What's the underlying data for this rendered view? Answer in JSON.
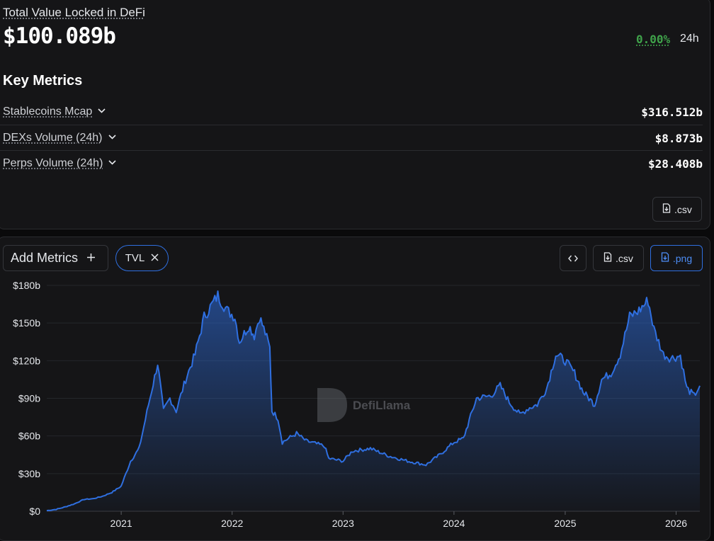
{
  "header": {
    "tvl_label": "Total Value Locked in DeFi",
    "tvl_value": "$100.089b",
    "change_pct": "0.00%",
    "change_period": "24h",
    "change_color": "#3fa24a"
  },
  "key_metrics": {
    "title": "Key Metrics",
    "items": [
      {
        "label": "Stablecoins Mcap",
        "value": "$316.512b"
      },
      {
        "label": "DEXs Volume (24h)",
        "value": "$8.873b"
      },
      {
        "label": "Perps Volume (24h)",
        "value": "$28.408b"
      }
    ],
    "csv_label": ".csv"
  },
  "toolbar": {
    "add_metrics_label": "Add Metrics",
    "tvl_pill_label": "TVL",
    "embed_icon": "code-icon",
    "csv_label": ".csv",
    "png_label": ".png",
    "accent_color": "#2f6fe0"
  },
  "watermark": "DefiLlama",
  "chart_data": {
    "type": "area",
    "series": [
      {
        "name": "TVL",
        "color": "#2f6fe0"
      }
    ],
    "x_ticks": [
      "2021",
      "2022",
      "2023",
      "2024",
      "2025",
      "2026"
    ],
    "y_ticks": [
      "$0",
      "$30b",
      "$60b",
      "$90b",
      "$120b",
      "$150b",
      "$180b"
    ],
    "ylim": [
      0,
      180
    ],
    "y_unit": "billion USD",
    "xlim": [
      "2020-05-01",
      "2026-03-20"
    ],
    "grid": true,
    "points": [
      [
        "2020-05-01",
        0.5
      ],
      [
        "2020-06-01",
        1.5
      ],
      [
        "2020-07-01",
        3.5
      ],
      [
        "2020-08-01",
        6
      ],
      [
        "2020-09-01",
        9.5
      ],
      [
        "2020-10-01",
        10
      ],
      [
        "2020-11-01",
        12
      ],
      [
        "2020-12-01",
        15
      ],
      [
        "2021-01-01",
        20
      ],
      [
        "2021-02-01",
        40
      ],
      [
        "2021-03-01",
        50
      ],
      [
        "2021-04-01",
        85
      ],
      [
        "2021-05-01",
        118
      ],
      [
        "2021-05-20",
        80
      ],
      [
        "2021-06-10",
        90
      ],
      [
        "2021-07-01",
        80
      ],
      [
        "2021-08-01",
        105
      ],
      [
        "2021-09-01",
        125
      ],
      [
        "2021-10-01",
        155
      ],
      [
        "2021-11-15",
        172
      ],
      [
        "2021-12-15",
        160
      ],
      [
        "2022-01-10",
        155
      ],
      [
        "2022-01-25",
        135
      ],
      [
        "2022-02-25",
        148
      ],
      [
        "2022-03-15",
        140
      ],
      [
        "2022-04-01",
        155
      ],
      [
        "2022-04-20",
        142
      ],
      [
        "2022-05-05",
        130
      ],
      [
        "2022-05-12",
        80
      ],
      [
        "2022-06-01",
        74
      ],
      [
        "2022-06-15",
        55
      ],
      [
        "2022-08-01",
        62
      ],
      [
        "2022-09-01",
        56
      ],
      [
        "2022-10-01",
        54
      ],
      [
        "2022-11-01",
        52
      ],
      [
        "2022-11-15",
        42
      ],
      [
        "2023-01-01",
        40
      ],
      [
        "2023-02-01",
        48
      ],
      [
        "2023-04-01",
        50
      ],
      [
        "2023-06-01",
        44
      ],
      [
        "2023-08-01",
        40
      ],
      [
        "2023-10-01",
        37
      ],
      [
        "2023-11-15",
        45
      ],
      [
        "2024-01-01",
        55
      ],
      [
        "2024-02-01",
        58
      ],
      [
        "2024-03-15",
        90
      ],
      [
        "2024-05-01",
        92
      ],
      [
        "2024-06-01",
        100
      ],
      [
        "2024-07-01",
        87
      ],
      [
        "2024-08-05",
        77
      ],
      [
        "2024-09-01",
        82
      ],
      [
        "2024-10-01",
        85
      ],
      [
        "2024-11-01",
        98
      ],
      [
        "2024-12-01",
        125
      ],
      [
        "2025-01-01",
        120
      ],
      [
        "2025-02-01",
        110
      ],
      [
        "2025-03-01",
        95
      ],
      [
        "2025-04-08",
        85
      ],
      [
        "2025-05-01",
        105
      ],
      [
        "2025-06-01",
        110
      ],
      [
        "2025-07-01",
        125
      ],
      [
        "2025-08-01",
        155
      ],
      [
        "2025-09-01",
        160
      ],
      [
        "2025-10-01",
        168
      ],
      [
        "2025-10-20",
        145
      ],
      [
        "2025-11-20",
        125
      ],
      [
        "2025-12-15",
        122
      ],
      [
        "2026-01-15",
        124
      ],
      [
        "2026-02-05",
        98
      ],
      [
        "2026-03-01",
        92
      ],
      [
        "2026-03-20",
        100
      ]
    ]
  }
}
